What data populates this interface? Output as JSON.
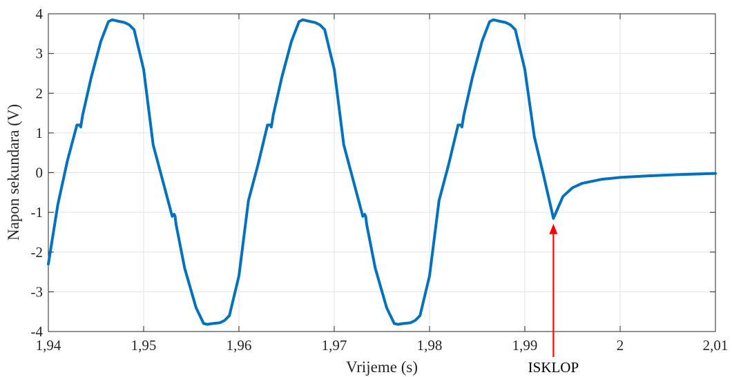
{
  "chart_data": {
    "type": "line",
    "xlabel": "Vrijeme (s)",
    "ylabel": "Napon sekundara (V)",
    "xlim": [
      1.94,
      2.01
    ],
    "ylim": [
      -4,
      4
    ],
    "grid": true,
    "xticks": [
      1.94,
      1.95,
      1.96,
      1.97,
      1.98,
      1.99,
      2.0,
      2.01
    ],
    "xtick_labels": [
      "1,94",
      "1,95",
      "1,96",
      "1,97",
      "1,98",
      "1,99",
      "2",
      "2,01"
    ],
    "yticks": [
      -4,
      -3,
      -2,
      -1,
      0,
      1,
      2,
      3,
      4
    ],
    "ytick_labels": [
      "-4",
      "-3",
      "-2",
      "-1",
      "0",
      "1",
      "2",
      "3",
      "4"
    ],
    "line_color": "#0072BD",
    "series": [
      {
        "x": [
          1.94,
          1.941,
          1.942,
          1.943,
          1.9433,
          1.9434,
          1.9436,
          1.9445,
          1.9455,
          1.9463,
          1.9467,
          1.9472,
          1.948,
          1.9485,
          1.949,
          1.95,
          1.951,
          1.952,
          1.953,
          1.9532,
          1.9533,
          1.9534,
          1.9543,
          1.9555,
          1.9563,
          1.9567,
          1.9572,
          1.958,
          1.9585,
          1.959,
          1.96,
          1.961,
          1.962,
          1.963,
          1.9633,
          1.9634,
          1.9636,
          1.9645,
          1.9655,
          1.9663,
          1.9667,
          1.9672,
          1.968,
          1.9685,
          1.969,
          1.97,
          1.971,
          1.972,
          1.973,
          1.9732,
          1.9733,
          1.9734,
          1.9743,
          1.9755,
          1.9763,
          1.9767,
          1.9772,
          1.978,
          1.9785,
          1.979,
          1.98,
          1.981,
          1.982,
          1.983,
          1.9833,
          1.9834,
          1.9836,
          1.9845,
          1.9855,
          1.9863,
          1.9867,
          1.9872,
          1.988,
          1.9885,
          1.989,
          1.99,
          1.991,
          1.992,
          1.993,
          1.994,
          1.995,
          1.996,
          1.998,
          2.0,
          2.003,
          2.006,
          2.01
        ],
        "y": [
          -2.3,
          -0.8,
          0.3,
          1.2,
          1.2,
          1.15,
          1.45,
          2.4,
          3.3,
          3.8,
          3.85,
          3.82,
          3.78,
          3.72,
          3.6,
          2.6,
          0.7,
          -0.2,
          -1.1,
          -1.05,
          -1.1,
          -1.3,
          -2.4,
          -3.4,
          -3.8,
          -3.82,
          -3.8,
          -3.78,
          -3.72,
          -3.6,
          -2.6,
          -0.7,
          0.2,
          1.2,
          1.2,
          1.15,
          1.45,
          2.4,
          3.3,
          3.8,
          3.85,
          3.82,
          3.78,
          3.72,
          3.6,
          2.6,
          0.7,
          -0.2,
          -1.1,
          -1.05,
          -1.1,
          -1.3,
          -2.4,
          -3.4,
          -3.8,
          -3.82,
          -3.8,
          -3.78,
          -3.72,
          -3.6,
          -2.6,
          -0.7,
          0.2,
          1.2,
          1.2,
          1.15,
          1.45,
          2.4,
          3.3,
          3.8,
          3.85,
          3.82,
          3.78,
          3.72,
          3.6,
          2.6,
          0.9,
          -0.1,
          -1.15,
          -0.6,
          -0.38,
          -0.27,
          -0.17,
          -0.12,
          -0.08,
          -0.05,
          -0.02
        ]
      }
    ],
    "annotations": [
      {
        "text": "ISKLOP",
        "x": 1.993,
        "y": -1.15,
        "arrow_color": "#ff0000"
      }
    ]
  }
}
